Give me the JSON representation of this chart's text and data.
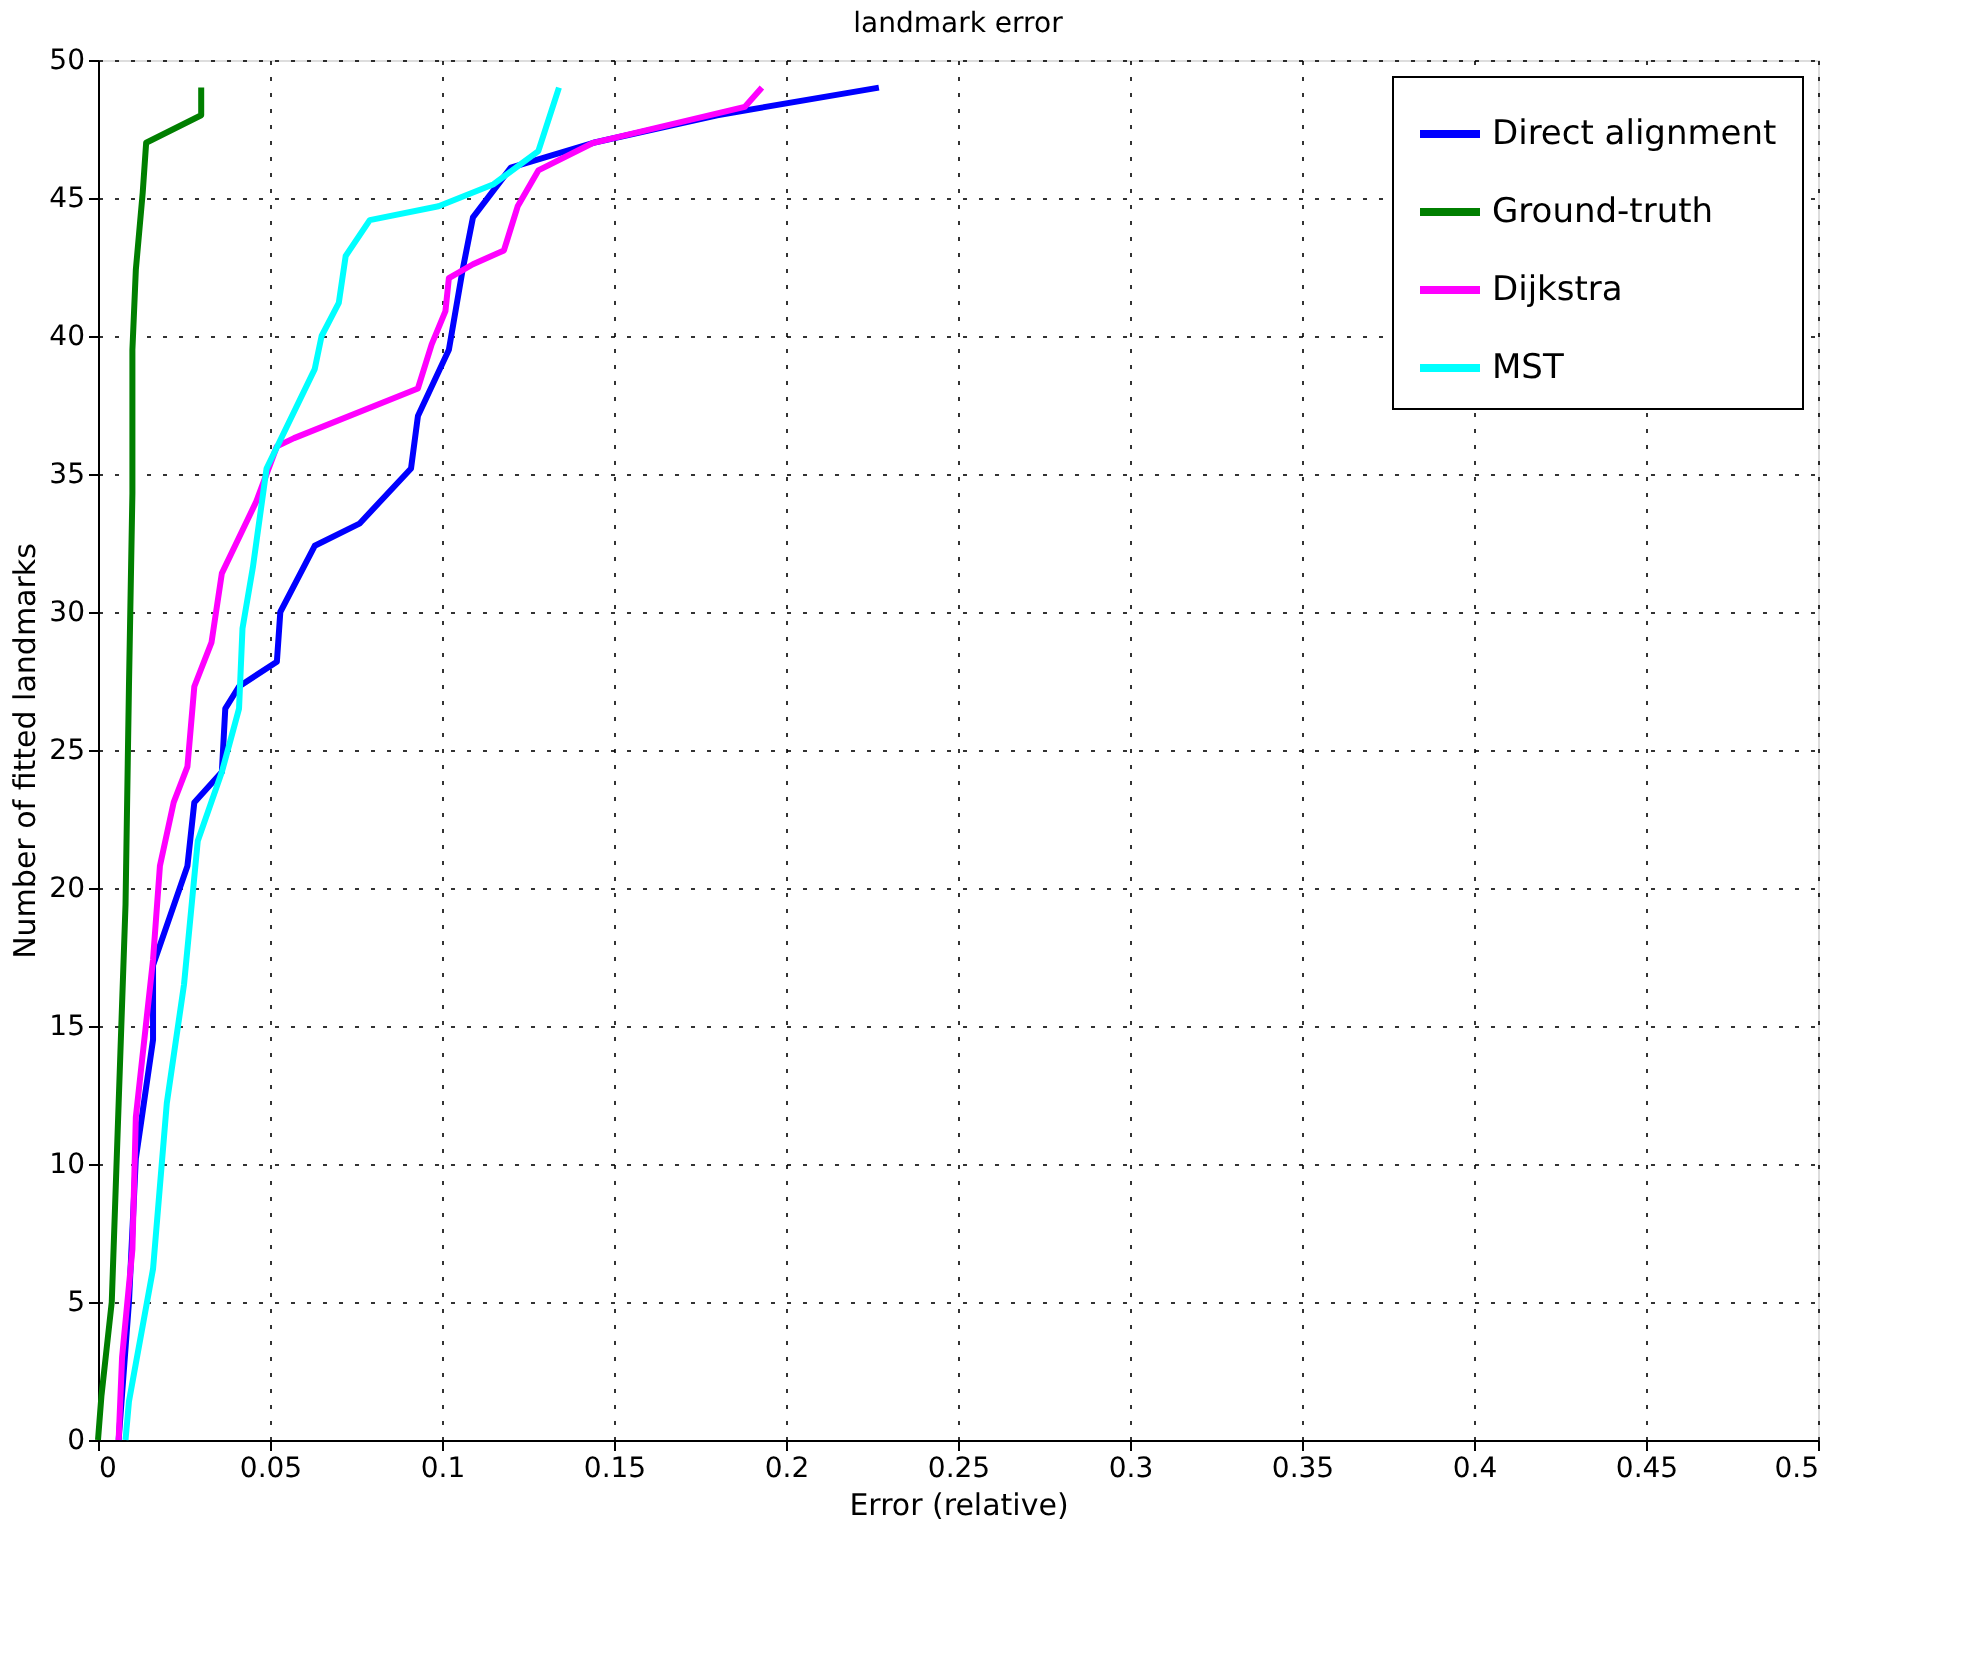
{
  "chart_data": {
    "type": "line",
    "title": "landmark error",
    "xlabel": "Error (relative)",
    "ylabel": "Number of fitted landmarks",
    "xlim": [
      0,
      0.5
    ],
    "xticks": [
      0,
      0.05,
      0.1,
      0.15,
      0.2,
      0.25,
      0.3,
      0.35,
      0.4,
      0.45,
      0.5
    ],
    "ylim": [
      0,
      50
    ],
    "yticks": [
      0,
      5,
      10,
      15,
      20,
      25,
      30,
      35,
      40,
      45,
      50
    ],
    "grid": true,
    "legend": "top right",
    "line_style": "solid",
    "marker": "none",
    "series": [
      {
        "name": "Direct alignment",
        "color": "#0000ff",
        "x": [
          0.006,
          0.009,
          0.011,
          0.016,
          0.016,
          0.026,
          0.028,
          0.036,
          0.037,
          0.041,
          0.052,
          0.053,
          0.063,
          0.076,
          0.091,
          0.093,
          0.102,
          0.106,
          0.109,
          0.12,
          0.144,
          0.18,
          0.227
        ],
        "values": [
          0,
          5,
          10.2,
          14.5,
          17.2,
          20.8,
          23.1,
          24.2,
          26.5,
          27.3,
          28.2,
          30,
          32.4,
          33.2,
          35.2,
          37.1,
          39.5,
          42.4,
          44.3,
          46.1,
          47,
          48,
          49
        ]
      },
      {
        "name": "Ground-truth",
        "color": "#007f00",
        "x": [
          0,
          0.001,
          0.004,
          0.006,
          0.008,
          0.009,
          0.01,
          0.01,
          0.011,
          0.013,
          0.014,
          0.03,
          0.03
        ],
        "values": [
          0,
          1.6,
          5,
          12.2,
          19.4,
          27.3,
          34.3,
          39.5,
          42.4,
          45.2,
          47,
          48,
          49
        ]
      },
      {
        "name": "Dijkstra",
        "color": "#ff00ff",
        "x": [
          0.006,
          0.007,
          0.01,
          0.011,
          0.016,
          0.018,
          0.022,
          0.026,
          0.028,
          0.033,
          0.036,
          0.046,
          0.052,
          0.057,
          0.093,
          0.097,
          0.101,
          0.102,
          0.109,
          0.118,
          0.122,
          0.128,
          0.144,
          0.188,
          0.193
        ],
        "values": [
          0,
          3,
          6.9,
          11.7,
          17.4,
          20.8,
          23.1,
          24.4,
          27.3,
          28.9,
          31.4,
          34,
          36,
          36.3,
          38.1,
          39.7,
          40.9,
          42.1,
          42.6,
          43.1,
          44.7,
          46,
          47,
          48.3,
          49
        ]
      },
      {
        "name": "MST",
        "color": "#00ffff",
        "x": [
          0.008,
          0.009,
          0.016,
          0.02,
          0.025,
          0.029,
          0.036,
          0.041,
          0.042,
          0.045,
          0.049,
          0.063,
          0.065,
          0.07,
          0.072,
          0.079,
          0.099,
          0.115,
          0.128,
          0.134
        ],
        "values": [
          0,
          1.4,
          6.2,
          12.2,
          16.5,
          21.7,
          24.2,
          26.5,
          29.4,
          31.6,
          35.2,
          38.8,
          40,
          41.2,
          42.9,
          44.2,
          44.7,
          45.5,
          46.7,
          49
        ]
      }
    ]
  }
}
